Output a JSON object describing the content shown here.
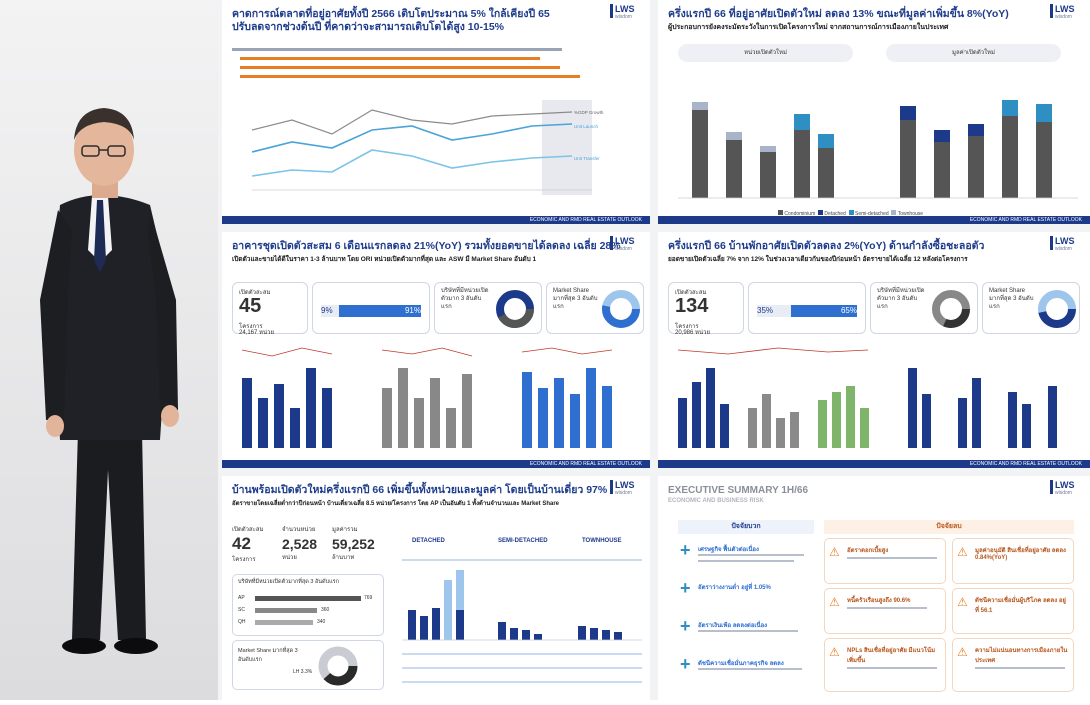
{
  "panels": {
    "p1": {
      "title_line1": "คาดการณ์ตลาดที่อยู่อาศัยทั้งปี 2566 เติบโตประมาณ 5% ใกล้เคียงปี 65",
      "title_line2": "ปรับลดจากช่วงต้นปี ที่คาดว่าจะสามารถเติบโตได้สูง 10-15%",
      "series_labels": [
        "%GDP Growth",
        "Unit Launch",
        "Unit Transfer"
      ]
    },
    "p2": {
      "title": "ครึ่งแรกปี 66 ที่อยู่อาศัยเปิดตัวใหม่ ลดลง 13% ขณะที่มูลค่าเพิ่มขึ้น 8%(YoY)",
      "subtitle": "ผู้ประกอบการยังคงระมัดระวังในการเปิดโครงการใหม่ จากสถานการณ์การเมืองภายในประเทศ",
      "chart_left_label": "หน่วยเปิดตัวใหม่ ",
      "chart_right_label": "มูลค่าเปิดตัวใหม่ ",
      "legend": [
        "Condominium",
        "Detached",
        "Semi-detached",
        "Townhouse"
      ]
    },
    "p3": {
      "title": "อาคารชุดเปิดตัวสะสม 6 เดือนแรกลดลง 21%(YoY) รวมทั้งยอดขายได้ลดลง เฉลี่ย 28%",
      "subtitle": "เปิดตัวและขายได้ดีในราคา 1-3 ล้านบาท โดย ORI หน่วยเปิดตัวมากที่สุด และ ASW มี Market Share อันดับ 1",
      "kpi_label": "เปิดตัวสะสม",
      "kpi_value": "45",
      "kpi_unit": "โครงการ",
      "kpi_units": "24,167 หน่วย",
      "share_left": "9%",
      "share_right": "91%",
      "box2_title": "บริษัทที่มีหน่วยเปิดตัวมาก 3 อันดับแรก",
      "box3_title": "Market Share มากที่สุด 3 อันดับแรก"
    },
    "p4": {
      "title": "ครึ่งแรกปี 66 บ้านพักอาศัยเปิดตัวลดลง 2%(YoY) ด้านกำลังซื้อชะลอตัว",
      "subtitle": "ยอดขายเปิดตัวเฉลี่ย 7% จาก 12% ในช่วงเวลาเดียวกันของปีก่อนหน้า อัตราขายได้เฉลี่ย 12 หลังต่อโครงการ",
      "kpi_label": "เปิดตัวสะสม",
      "kpi_value": "134",
      "kpi_unit": "โครงการ",
      "kpi_units": "20,986 หน่วย",
      "share_left": "35%",
      "share_right": "65%",
      "box2_title": "บริษัทที่มีหน่วยเปิดตัวมาก 3 อันดับแรก",
      "box3_title": "Market Share มากที่สุด 3 อันดับแรก"
    },
    "p5": {
      "title": "บ้านพร้อมเปิดตัวใหม่ครึ่งแรกปี 66 เพิ่มขึ้นทั้งหน่วยและมูลค่า โดยเป็นบ้านเดี่ยว 97%",
      "subtitle": "อัตราขายโดยเฉลี่ยต่ำกว่าปีก่อนหน้า บ้านเดี่ยวเฉลี่ย 8.5 หน่วย/โครงการ โดย AP เป็นอันดับ 1 ทั้งด้านจำนวนและ Market Share",
      "kpis": [
        {
          "label": "เปิดตัวสะสม",
          "value": "42",
          "unit": "โครงการ"
        },
        {
          "label": "จำนวนหน่วย",
          "value": "2,528",
          "unit": "หน่วย"
        },
        {
          "label": "มูลค่ารวม",
          "value": "59,252",
          "unit": "ล้านบาท"
        }
      ],
      "chart_heads": [
        "DETACHED",
        "SEMI-DETACHED",
        "TOWNHOUSE"
      ],
      "top3_title": "บริษัทที่มีหน่วยเปิดตัวมากที่สุด 3 อันดับแรก",
      "top3": [
        {
          "name": "AP",
          "value": "769"
        },
        {
          "name": "SC",
          "value": "360"
        },
        {
          "name": "QH",
          "value": "340"
        }
      ],
      "share_title": "Market Share มากที่สุด 3 อันดับแรก",
      "share_pct": "LH 3.3%"
    },
    "p6": {
      "title": "EXECUTIVE SUMMARY 1H/66",
      "subtitle": "ECONOMIC AND BUSINESS RISK",
      "col_left": "ปัจจัยบวก",
      "col_right": "ปัจจัยลบ",
      "positives": [
        "เศรษฐกิจ ฟื้นตัวต่อเนื่อง",
        "อัตราว่างงานต่ำ อยู่ที่ 1.05%",
        "อัตราเงินเฟ้อ ลดลงต่อเนื่อง",
        "ดัชนีความเชื่อมั่นภาคธุรกิจ ลดลง"
      ],
      "negatives_a": [
        "อัตราดอกเบี้ยสูง",
        "หนี้ครัวเรือนสูงถึง 90.6%",
        "NPLs สินเชื่อที่อยู่อาศัย มีแนวโน้มเพิ่มขึ้น"
      ],
      "negatives_b": [
        "มูลค่าอนุมัติ สินเชื่อที่อยู่อาศัย ลดลง 0.84%(YoY)",
        "ดัชนีความเชื่อมั่นผู้บริโภค ลดลง อยู่ที่ 56.1",
        "ความไม่แน่นอนทางการเมืองภายในประเทศ"
      ]
    }
  },
  "footer_text": "ECONOMIC AND RMD REAL ESTATE OUTLOOK",
  "logo_text": "LWS",
  "logo_sub": "wisdom"
}
